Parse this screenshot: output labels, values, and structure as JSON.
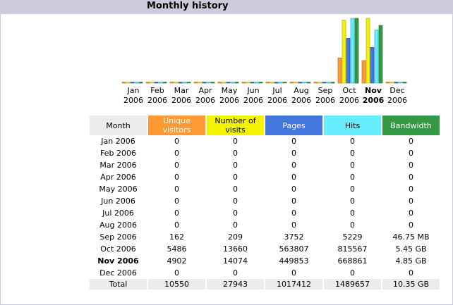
{
  "section_title": "Monthly history",
  "colors": {
    "unique_visitors": "#ff9933",
    "visits": "#f4f400",
    "pages": "#4477dd",
    "hits": "#66eeff",
    "bandwidth": "#339944",
    "header_bg": "#ccccdd"
  },
  "chart_data": {
    "type": "bar",
    "categories": [
      "Jan 2006",
      "Feb 2006",
      "Mar 2006",
      "Apr 2006",
      "May 2006",
      "Jun 2006",
      "Jul 2006",
      "Aug 2006",
      "Sep 2006",
      "Oct 2006",
      "Nov 2006",
      "Dec 2006"
    ],
    "category_labels": [
      [
        "Jan",
        "2006"
      ],
      [
        "Feb",
        "2006"
      ],
      [
        "Mar",
        "2006"
      ],
      [
        "Apr",
        "2006"
      ],
      [
        "May",
        "2006"
      ],
      [
        "Jun",
        "2006"
      ],
      [
        "Jul",
        "2006"
      ],
      [
        "Aug",
        "2006"
      ],
      [
        "Sep",
        "2006"
      ],
      [
        "Oct",
        "2006"
      ],
      [
        "Nov",
        "2006"
      ],
      [
        "Dec",
        "2006"
      ]
    ],
    "current_month_index": 10,
    "series": [
      {
        "name": "Unique visitors",
        "values": [
          0,
          0,
          0,
          0,
          0,
          0,
          0,
          0,
          162,
          5486,
          4902,
          0
        ]
      },
      {
        "name": "Number of visits",
        "values": [
          0,
          0,
          0,
          0,
          0,
          0,
          0,
          0,
          209,
          13660,
          14074,
          0
        ]
      },
      {
        "name": "Pages",
        "values": [
          0,
          0,
          0,
          0,
          0,
          0,
          0,
          0,
          3752,
          563807,
          449853,
          0
        ]
      },
      {
        "name": "Hits",
        "values": [
          0,
          0,
          0,
          0,
          0,
          0,
          0,
          0,
          5229,
          815567,
          668861,
          0
        ]
      },
      {
        "name": "Bandwidth",
        "values": [
          0,
          0,
          0,
          0,
          0,
          0,
          0,
          0,
          46.75,
          5580.8,
          4966.4,
          0
        ]
      }
    ]
  },
  "table": {
    "headers": [
      "Month",
      "Unique visitors",
      "Number of visits",
      "Pages",
      "Hits",
      "Bandwidth"
    ],
    "rows": [
      [
        "Jan 2006",
        "0",
        "0",
        "0",
        "0",
        "0"
      ],
      [
        "Feb 2006",
        "0",
        "0",
        "0",
        "0",
        "0"
      ],
      [
        "Mar 2006",
        "0",
        "0",
        "0",
        "0",
        "0"
      ],
      [
        "Apr 2006",
        "0",
        "0",
        "0",
        "0",
        "0"
      ],
      [
        "May 2006",
        "0",
        "0",
        "0",
        "0",
        "0"
      ],
      [
        "Jun 2006",
        "0",
        "0",
        "0",
        "0",
        "0"
      ],
      [
        "Jul 2006",
        "0",
        "0",
        "0",
        "0",
        "0"
      ],
      [
        "Aug 2006",
        "0",
        "0",
        "0",
        "0",
        "0"
      ],
      [
        "Sep 2006",
        "162",
        "209",
        "3752",
        "5229",
        "46.75 MB"
      ],
      [
        "Oct 2006",
        "5486",
        "13660",
        "563807",
        "815567",
        "5.45 GB"
      ],
      [
        "Nov 2006",
        "4902",
        "14074",
        "449853",
        "668861",
        "4.85 GB"
      ],
      [
        "Dec 2006",
        "0",
        "0",
        "0",
        "0",
        "0"
      ]
    ],
    "total": [
      "Total",
      "10550",
      "27943",
      "1017412",
      "1489657",
      "10.35 GB"
    ]
  }
}
